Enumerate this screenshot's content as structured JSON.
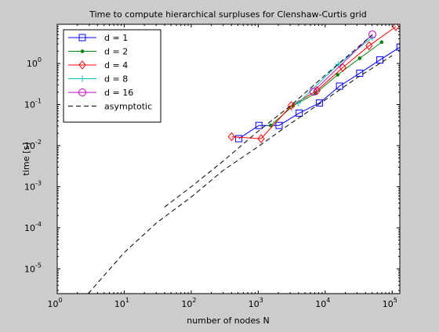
{
  "chart_data": {
    "type": "line",
    "title": "Time to compute hierarchical surpluses for Clenshaw-Curtis grid",
    "xlabel": "number of nodes N",
    "ylabel": "time [s]",
    "xscale": "log",
    "yscale": "log",
    "xlim": [
      1,
      130000
    ],
    "ylim": [
      2.5e-06,
      9
    ],
    "grid": false,
    "legend_position": "top-left",
    "x_ticks": [
      {
        "value": 1,
        "base": "10",
        "exp": "0"
      },
      {
        "value": 10,
        "base": "10",
        "exp": "1"
      },
      {
        "value": 100,
        "base": "10",
        "exp": "2"
      },
      {
        "value": 1000,
        "base": "10",
        "exp": "3"
      },
      {
        "value": 10000,
        "base": "10",
        "exp": "4"
      },
      {
        "value": 100000,
        "base": "10",
        "exp": "5"
      }
    ],
    "y_ticks": [
      {
        "value": 1e-05,
        "base": "10",
        "exp": "-5"
      },
      {
        "value": 0.0001,
        "base": "10",
        "exp": "-4"
      },
      {
        "value": 0.001,
        "base": "10",
        "exp": "-3"
      },
      {
        "value": 0.01,
        "base": "10",
        "exp": "-2"
      },
      {
        "value": 0.1,
        "base": "10",
        "exp": "-1"
      },
      {
        "value": 1,
        "base": "10",
        "exp": "0"
      }
    ],
    "series": [
      {
        "name": "d = 1",
        "color": "#0000ff",
        "marker": "square",
        "x": [
          513,
          1025,
          2049,
          4097,
          8193,
          16385,
          32769,
          65537,
          131073
        ],
        "y": [
          0.0148,
          0.031,
          0.031,
          0.062,
          0.109,
          0.281,
          0.578,
          1.22,
          2.5
        ]
      },
      {
        "name": "d = 2",
        "color": "#008000",
        "marker": "dot",
        "x": [
          1537,
          3329,
          7169,
          15361,
          32769,
          69633
        ],
        "y": [
          0.031,
          0.094,
          0.187,
          0.531,
          1.34,
          3.3
        ]
      },
      {
        "name": "d = 4",
        "color": "#ff0000",
        "marker": "diamond",
        "x": [
          401,
          1105,
          3105,
          7537,
          18321,
          45201,
          113569
        ],
        "y": [
          0.0165,
          0.0148,
          0.094,
          0.219,
          0.797,
          2.7,
          7.9
        ]
      },
      {
        "name": "d = 8",
        "color": "#00bfbf",
        "marker": "plus",
        "x": [
          3937,
          15713,
          50369
        ],
        "y": [
          0.109,
          0.95,
          4.3
        ]
      },
      {
        "name": "d = 16",
        "color": "#bf00bf",
        "marker": "circle",
        "x": [
          6657,
          50689
        ],
        "y": [
          0.206,
          5.1
        ]
      },
      {
        "name": "asymptotic",
        "color": "#000000",
        "marker": "none",
        "dash": true,
        "x": [
          2.9,
          10,
          30,
          100,
          300,
          1000,
          3000,
          10000,
          30000,
          100000
        ],
        "y": [
          2.5e-06,
          2.5e-05,
          0.00013,
          0.00056,
          0.0025,
          0.0095,
          0.034,
          0.13,
          0.45,
          1.55
        ]
      },
      {
        "name": "asymptotic",
        "color": "#000000",
        "marker": "none",
        "dash": true,
        "in_legend": false,
        "x": [
          40,
          100,
          300,
          1000,
          3000,
          10000,
          30000,
          50000
        ],
        "y": [
          0.00032,
          0.001,
          0.0042,
          0.0225,
          0.092,
          0.52,
          2.4,
          4.9
        ]
      }
    ]
  }
}
